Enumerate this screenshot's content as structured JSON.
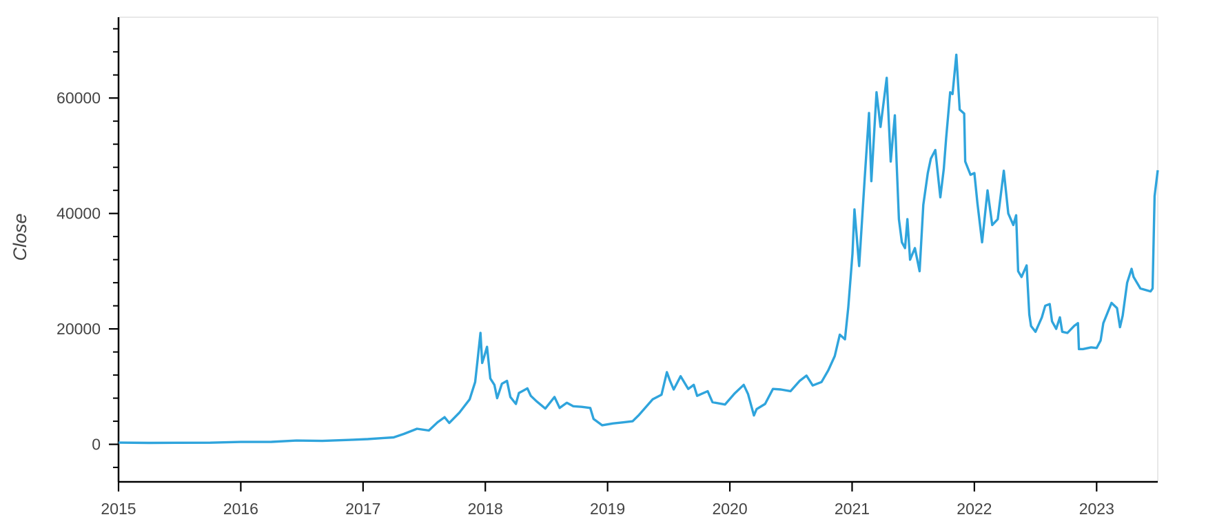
{
  "chart_data": {
    "type": "line",
    "title": "",
    "xlabel": "",
    "ylabel": "Close",
    "xlim": [
      "2015-01-01",
      "2023-07-01"
    ],
    "ylim": [
      -6500,
      74000
    ],
    "grid": false,
    "legend": "none",
    "x_ticks": [
      "2015",
      "2016",
      "2017",
      "2018",
      "2019",
      "2020",
      "2021",
      "2022",
      "2023"
    ],
    "y_ticks": [
      0,
      20000,
      40000,
      60000
    ],
    "y_tick_labels": [
      "0",
      "20000",
      "40000",
      "60000"
    ],
    "colors": {
      "line": "#2fa4dc",
      "axis": "#000000",
      "frame": "#e0e0e0",
      "text": "#444444"
    },
    "series": [
      {
        "x": [
          "2015-01-01",
          "2015-04-01",
          "2015-07-01",
          "2015-10-01",
          "2016-01-01",
          "2016-04-01",
          "2016-06-15",
          "2016-09-01",
          "2016-12-01",
          "2017-01-15",
          "2017-03-01",
          "2017-04-01",
          "2017-05-01",
          "2017-06-10",
          "2017-07-15",
          "2017-08-10",
          "2017-09-01",
          "2017-09-15",
          "2017-10-15",
          "2017-11-15",
          "2017-12-01",
          "2017-12-08",
          "2017-12-17",
          "2017-12-22",
          "2017-12-28",
          "2018-01-06",
          "2018-01-16",
          "2018-01-28",
          "2018-02-06",
          "2018-02-20",
          "2018-03-05",
          "2018-03-15",
          "2018-04-01",
          "2018-04-10",
          "2018-05-05",
          "2018-05-15",
          "2018-06-01",
          "2018-06-28",
          "2018-07-25",
          "2018-08-10",
          "2018-09-01",
          "2018-09-20",
          "2018-10-15",
          "2018-11-10",
          "2018-11-20",
          "2018-12-15",
          "2019-01-15",
          "2019-02-15",
          "2019-03-15",
          "2019-04-02",
          "2019-05-14",
          "2019-06-10",
          "2019-06-26",
          "2019-07-05",
          "2019-07-16",
          "2019-08-06",
          "2019-08-29",
          "2019-09-15",
          "2019-09-25",
          "2019-10-26",
          "2019-11-10",
          "2019-12-17",
          "2020-01-15",
          "2020-02-12",
          "2020-02-25",
          "2020-03-12",
          "2020-03-20",
          "2020-04-15",
          "2020-05-08",
          "2020-06-01",
          "2020-06-30",
          "2020-07-27",
          "2020-08-17",
          "2020-09-05",
          "2020-10-01",
          "2020-10-21",
          "2020-11-10",
          "2020-11-25",
          "2020-12-10",
          "2020-12-20",
          "2021-01-02",
          "2021-01-08",
          "2021-01-22",
          "2021-02-08",
          "2021-02-21",
          "2021-02-28",
          "2021-03-13",
          "2021-03-25",
          "2021-04-13",
          "2021-04-25",
          "2021-05-07",
          "2021-05-12",
          "2021-05-19",
          "2021-05-28",
          "2021-06-07",
          "2021-06-14",
          "2021-06-22",
          "2021-07-06",
          "2021-07-20",
          "2021-07-31",
          "2021-08-14",
          "2021-08-23",
          "2021-09-06",
          "2021-09-21",
          "2021-10-01",
          "2021-10-08",
          "2021-10-20",
          "2021-10-27",
          "2021-11-08",
          "2021-11-18",
          "2021-12-01",
          "2021-12-04",
          "2021-12-20",
          "2022-01-01",
          "2022-01-10",
          "2022-01-24",
          "2022-02-10",
          "2022-02-24",
          "2022-03-10",
          "2022-03-28",
          "2022-04-11",
          "2022-04-26",
          "2022-05-04",
          "2022-05-10",
          "2022-05-20",
          "2022-06-05",
          "2022-06-13",
          "2022-06-18",
          "2022-07-01",
          "2022-07-20",
          "2022-07-30",
          "2022-08-13",
          "2022-08-20",
          "2022-09-02",
          "2022-09-13",
          "2022-09-20",
          "2022-10-05",
          "2022-10-25",
          "2022-11-06",
          "2022-11-09",
          "2022-11-21",
          "2022-12-15",
          "2023-01-01",
          "2023-01-13",
          "2023-01-21",
          "2023-02-15",
          "2023-03-01",
          "2023-03-10",
          "2023-03-18",
          "2023-04-01",
          "2023-04-14",
          "2023-04-20",
          "2023-05-10",
          "2023-06-10",
          "2023-06-16",
          "2023-06-22",
          "2023-07-01"
        ],
        "y": [
          300,
          250,
          270,
          280,
          420,
          430,
          650,
          600,
          800,
          900,
          1100,
          1200,
          1800,
          2700,
          2400,
          3800,
          4700,
          3700,
          5500,
          7800,
          10800,
          14500,
          19300,
          14100,
          15200,
          16900,
          11400,
          10300,
          8000,
          10500,
          11000,
          8200,
          7000,
          8900,
          9700,
          8400,
          7500,
          6200,
          8200,
          6300,
          7200,
          6600,
          6500,
          6300,
          4400,
          3300,
          3600,
          3800,
          4000,
          5000,
          7800,
          8600,
          12500,
          11000,
          9500,
          11800,
          9600,
          10300,
          8400,
          9200,
          7300,
          6900,
          8800,
          10300,
          8700,
          5000,
          6100,
          7000,
          9600,
          9500,
          9200,
          11000,
          11900,
          10200,
          10800,
          12800,
          15300,
          19000,
          18200,
          23700,
          33000,
          40700,
          30900,
          46000,
          57400,
          45600,
          61000,
          55000,
          63500,
          49000,
          57000,
          49000,
          39000,
          35000,
          34000,
          39000,
          32000,
          34000,
          30000,
          41500,
          47000,
          49500,
          51000,
          42800,
          47700,
          53000,
          61000,
          60700,
          67500,
          58000,
          57300,
          49000,
          46700,
          47000,
          41800,
          35000,
          44000,
          38000,
          39000,
          47400,
          40000,
          38000,
          39700,
          30000,
          29000,
          31000,
          22500,
          20500,
          19500,
          22000,
          24000,
          24300,
          21300,
          20000,
          22000,
          19500,
          19300,
          20500,
          21000,
          16500,
          16500,
          16800,
          16700,
          18000,
          21000,
          24500,
          23600,
          20300,
          22300,
          28000,
          30400,
          29000,
          27000,
          26500,
          27000,
          43000,
          47500
        ]
      }
    ]
  }
}
